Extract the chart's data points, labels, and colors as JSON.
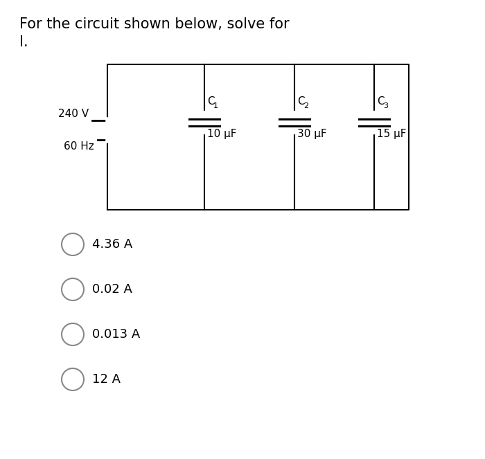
{
  "title_line1": "For the circuit shown below, solve for",
  "title_line2": "I.",
  "bg_color": "#ffffff",
  "text_color": "#000000",
  "source_label_line1": "240 V",
  "source_label_line2": "60 Hz",
  "capacitors": [
    {
      "name": "C",
      "sub": "1",
      "value": "10 μF"
    },
    {
      "name": "C",
      "sub": "2",
      "value": "30 μF"
    },
    {
      "name": "C",
      "sub": "3",
      "value": "15 μF"
    }
  ],
  "choices": [
    "4.36 A",
    "0.02 A",
    "0.013 A",
    "12 A"
  ],
  "font_size_title": 15,
  "font_size_labels": 11,
  "font_size_choices": 13,
  "font_size_cap": 11
}
